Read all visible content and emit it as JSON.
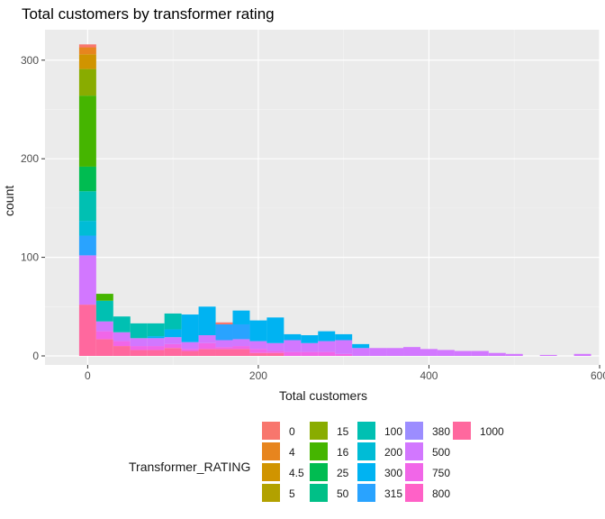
{
  "chart_data": {
    "type": "bar",
    "title": "Total customers by transformer rating",
    "xlabel": "Total customers",
    "ylabel": "count",
    "xlim": [
      -50,
      600
    ],
    "ylim": [
      0,
      340
    ],
    "x_ticks": [
      0,
      200,
      400,
      600
    ],
    "y_ticks": [
      0,
      100,
      200,
      300
    ],
    "bin_width": 20,
    "grid": true,
    "legend_title": "Transformer_RATING",
    "legend_position": "bottom",
    "categories": [
      "0",
      "4",
      "4.5",
      "5",
      "15",
      "16",
      "25",
      "50",
      "100",
      "200",
      "300",
      "315",
      "380",
      "500",
      "750",
      "800",
      "1000"
    ],
    "colors": {
      "0": "#F8766D",
      "4": "#E7851E",
      "4.5": "#D09400",
      "5": "#B2A100",
      "15": "#89AC00",
      "16": "#45B500",
      "25": "#00BC51",
      "50": "#00C087",
      "100": "#00C0B2",
      "200": "#00BCD6",
      "300": "#00B3F2",
      "315": "#29A3FF",
      "380": "#9C8DFF",
      "500": "#D277FF",
      "750": "#F166E8",
      "800": "#FF61C7",
      "1000": "#FF689E"
    },
    "bins": [
      {
        "x": 0,
        "stack": {
          "1000": 52,
          "500": 50,
          "315": 20,
          "200": 15,
          "100": 30,
          "25": 25,
          "16": 72,
          "15": 27,
          "4.5": 15,
          "4": 7,
          "0": 3
        }
      },
      {
        "x": 20,
        "stack": {
          "1000": 17,
          "750": 8,
          "500": 10,
          "100": 21,
          "16": 7
        }
      },
      {
        "x": 40,
        "stack": {
          "1000": 10,
          "750": 5,
          "500": 9,
          "100": 16
        }
      },
      {
        "x": 60,
        "stack": {
          "1000": 6,
          "750": 4,
          "500": 8,
          "100": 15
        }
      },
      {
        "x": 80,
        "stack": {
          "1000": 6,
          "750": 4,
          "500": 8,
          "300": 2,
          "100": 13
        }
      },
      {
        "x": 100,
        "stack": {
          "1000": 8,
          "750": 4,
          "500": 7,
          "300": 8,
          "100": 16
        }
      },
      {
        "x": 120,
        "stack": {
          "1000": 5,
          "750": 2,
          "500": 7,
          "300": 28
        }
      },
      {
        "x": 140,
        "stack": {
          "1000": 7,
          "750": 6,
          "500": 8,
          "300": 29
        }
      },
      {
        "x": 160,
        "stack": {
          "1000": 7,
          "750": 2,
          "500": 7,
          "315": 16,
          "0": 2
        }
      },
      {
        "x": 180,
        "stack": {
          "1000": 7,
          "750": 3,
          "500": 7,
          "315": 15,
          "300": 14
        }
      },
      {
        "x": 200,
        "stack": {
          "1000": 3,
          "750": 4,
          "500": 8,
          "300": 21
        }
      },
      {
        "x": 220,
        "stack": {
          "1000": 3,
          "750": 2,
          "500": 8,
          "300": 26
        }
      },
      {
        "x": 240,
        "stack": {
          "750": 4,
          "500": 12,
          "300": 6
        }
      },
      {
        "x": 260,
        "stack": {
          "750": 4,
          "500": 9,
          "300": 8
        }
      },
      {
        "x": 280,
        "stack": {
          "750": 4,
          "500": 11,
          "300": 10
        }
      },
      {
        "x": 300,
        "stack": {
          "750": 2,
          "500": 14,
          "300": 6
        }
      },
      {
        "x": 320,
        "stack": {
          "500": 8,
          "300": 4
        }
      },
      {
        "x": 340,
        "stack": {
          "500": 8
        }
      },
      {
        "x": 360,
        "stack": {
          "500": 8
        }
      },
      {
        "x": 380,
        "stack": {
          "500": 9
        }
      },
      {
        "x": 400,
        "stack": {
          "500": 7
        }
      },
      {
        "x": 420,
        "stack": {
          "500": 6
        }
      },
      {
        "x": 440,
        "stack": {
          "500": 5
        }
      },
      {
        "x": 460,
        "stack": {
          "500": 5
        }
      },
      {
        "x": 480,
        "stack": {
          "500": 3
        }
      },
      {
        "x": 500,
        "stack": {
          "500": 2
        }
      },
      {
        "x": 520,
        "stack": {}
      },
      {
        "x": 540,
        "stack": {
          "500": 1
        }
      },
      {
        "x": 560,
        "stack": {}
      },
      {
        "x": 580,
        "stack": {
          "500": 2
        }
      }
    ]
  }
}
